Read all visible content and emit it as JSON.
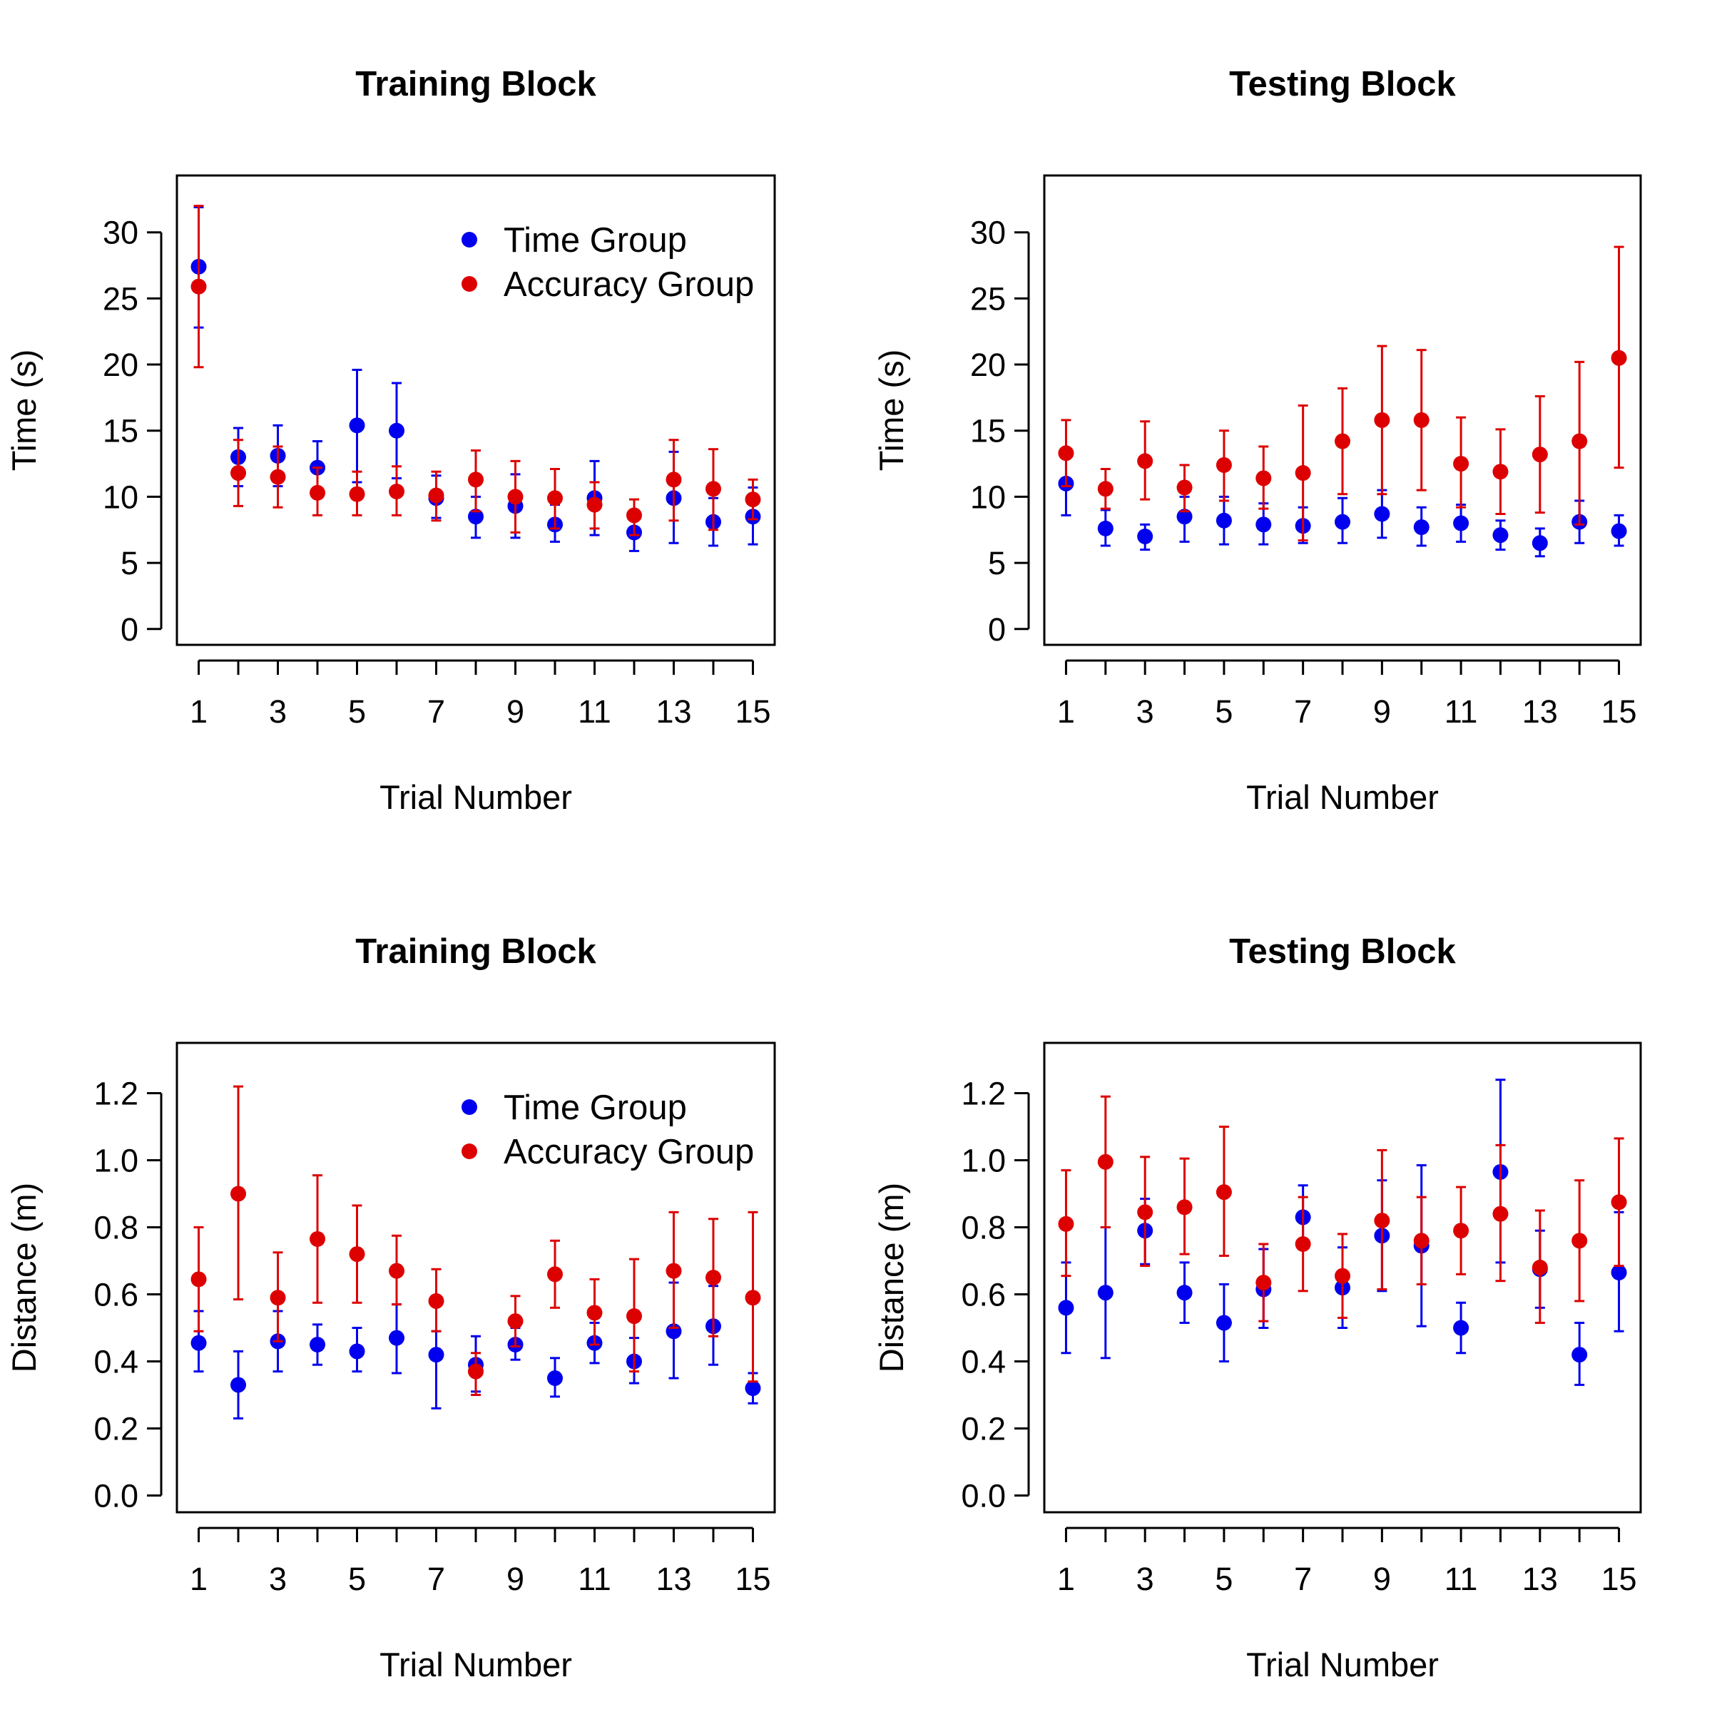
{
  "colors": {
    "time_group": "#0000ee",
    "accuracy_group": "#dd0000"
  },
  "chart_data": [
    {
      "type": "scatter",
      "title": "Training Block",
      "xlabel": "Trial Number",
      "ylabel": "Time (s)",
      "xlim": [
        0.45,
        15.55
      ],
      "ylim": [
        -1.2,
        34.3
      ],
      "xticks": [
        1,
        2,
        3,
        4,
        5,
        6,
        7,
        8,
        9,
        10,
        11,
        12,
        13,
        14,
        15
      ],
      "xtick_labels": [
        "1",
        "",
        "3",
        "",
        "5",
        "",
        "7",
        "",
        "9",
        "",
        "11",
        "",
        "13",
        "",
        "15"
      ],
      "yticks": [
        0,
        5,
        10,
        15,
        20,
        25,
        30
      ],
      "ytick_labels": [
        "0",
        "5",
        "10",
        "15",
        "20",
        "25",
        "30"
      ],
      "legend": "top-right",
      "x": [
        1,
        2,
        3,
        4,
        5,
        6,
        7,
        8,
        9,
        10,
        11,
        12,
        13,
        14,
        15
      ],
      "series": [
        {
          "name": "Time Group",
          "color": "#0000ee",
          "values": [
            27.4,
            13.0,
            13.1,
            12.2,
            15.4,
            15.0,
            9.9,
            8.5,
            9.3,
            7.9,
            9.9,
            7.3,
            9.9,
            8.1,
            8.5
          ],
          "err_low": [
            22.8,
            10.8,
            10.8,
            10.1,
            11.1,
            11.4,
            8.4,
            6.9,
            6.9,
            6.6,
            7.1,
            5.9,
            6.5,
            6.3,
            6.4
          ],
          "err_high": [
            31.9,
            15.2,
            15.4,
            14.2,
            19.6,
            18.6,
            11.6,
            10.0,
            11.7,
            9.4,
            12.7,
            8.7,
            13.4,
            9.9,
            10.7
          ]
        },
        {
          "name": "Accuracy Group",
          "color": "#dd0000",
          "values": [
            25.9,
            11.8,
            11.5,
            10.3,
            10.2,
            10.4,
            10.1,
            11.3,
            10.0,
            9.9,
            9.4,
            8.6,
            11.3,
            10.6,
            9.8
          ],
          "err_low": [
            19.8,
            9.3,
            9.2,
            8.6,
            8.6,
            8.6,
            8.2,
            8.9,
            7.3,
            7.6,
            7.6,
            7.1,
            8.2,
            7.5,
            8.3
          ],
          "err_high": [
            32.0,
            14.3,
            13.8,
            12.2,
            11.9,
            12.3,
            11.9,
            13.5,
            12.7,
            12.1,
            11.1,
            9.8,
            14.3,
            13.6,
            11.3
          ]
        }
      ]
    },
    {
      "type": "scatter",
      "title": "Testing Block",
      "xlabel": "Trial Number",
      "ylabel": "Time (s)",
      "xlim": [
        0.45,
        15.55
      ],
      "ylim": [
        -1.2,
        34.3
      ],
      "xticks": [
        1,
        2,
        3,
        4,
        5,
        6,
        7,
        8,
        9,
        10,
        11,
        12,
        13,
        14,
        15
      ],
      "xtick_labels": [
        "1",
        "",
        "3",
        "",
        "5",
        "",
        "7",
        "",
        "9",
        "",
        "11",
        "",
        "13",
        "",
        "15"
      ],
      "yticks": [
        0,
        5,
        10,
        15,
        20,
        25,
        30
      ],
      "ytick_labels": [
        "0",
        "5",
        "10",
        "15",
        "20",
        "25",
        "30"
      ],
      "legend": "none",
      "x": [
        1,
        2,
        3,
        4,
        5,
        6,
        7,
        8,
        9,
        10,
        11,
        12,
        13,
        14,
        15
      ],
      "series": [
        {
          "name": "Time Group",
          "color": "#0000ee",
          "values": [
            11.0,
            7.6,
            7.0,
            8.5,
            8.2,
            7.9,
            7.8,
            8.1,
            8.7,
            7.7,
            8.0,
            7.1,
            6.5,
            8.1,
            7.4
          ],
          "err_low": [
            8.6,
            6.3,
            6.0,
            6.6,
            6.4,
            6.4,
            6.5,
            6.5,
            6.9,
            6.3,
            6.6,
            6.0,
            5.5,
            6.5,
            6.3
          ],
          "err_high": [
            13.5,
            9.0,
            7.9,
            10.0,
            10.0,
            9.5,
            9.2,
            9.9,
            10.5,
            9.2,
            9.4,
            8.2,
            7.6,
            9.7,
            8.6
          ]
        },
        {
          "name": "Accuracy Group",
          "color": "#dd0000",
          "values": [
            13.3,
            10.6,
            12.7,
            10.7,
            12.4,
            11.4,
            11.8,
            14.2,
            15.8,
            15.8,
            12.5,
            11.9,
            13.2,
            14.2,
            20.5
          ],
          "err_low": [
            10.8,
            9.1,
            9.8,
            8.9,
            9.7,
            9.1,
            6.7,
            10.2,
            10.2,
            10.5,
            9.2,
            8.7,
            8.8,
            7.9,
            12.2
          ],
          "err_high": [
            15.8,
            12.1,
            15.7,
            12.4,
            15.0,
            13.8,
            16.9,
            18.2,
            21.4,
            21.1,
            16.0,
            15.1,
            17.6,
            20.2,
            28.9
          ]
        }
      ]
    },
    {
      "type": "scatter",
      "title": "Training Block",
      "xlabel": "Trial Number",
      "ylabel": "Distance (m)",
      "xlim": [
        0.45,
        15.55
      ],
      "ylim": [
        -0.05,
        1.35
      ],
      "xticks": [
        1,
        2,
        3,
        4,
        5,
        6,
        7,
        8,
        9,
        10,
        11,
        12,
        13,
        14,
        15
      ],
      "xtick_labels": [
        "1",
        "",
        "3",
        "",
        "5",
        "",
        "7",
        "",
        "9",
        "",
        "11",
        "",
        "13",
        "",
        "15"
      ],
      "yticks": [
        0.0,
        0.2,
        0.4,
        0.6,
        0.8,
        1.0,
        1.2
      ],
      "ytick_labels": [
        "0.0",
        "0.2",
        "0.4",
        "0.6",
        "0.8",
        "1.0",
        "1.2"
      ],
      "legend": "top-right",
      "x": [
        1,
        2,
        3,
        4,
        5,
        6,
        7,
        8,
        9,
        10,
        11,
        12,
        13,
        14,
        15
      ],
      "series": [
        {
          "name": "Time Group",
          "color": "#0000ee",
          "values": [
            0.455,
            0.33,
            0.46,
            0.45,
            0.43,
            0.47,
            0.42,
            0.39,
            0.45,
            0.35,
            0.455,
            0.4,
            0.49,
            0.505,
            0.32
          ],
          "err_low": [
            0.37,
            0.23,
            0.37,
            0.39,
            0.37,
            0.365,
            0.26,
            0.31,
            0.405,
            0.295,
            0.395,
            0.335,
            0.35,
            0.39,
            0.275
          ],
          "err_high": [
            0.55,
            0.43,
            0.55,
            0.51,
            0.5,
            0.57,
            0.49,
            0.475,
            0.5,
            0.41,
            0.515,
            0.47,
            0.635,
            0.625,
            0.365
          ]
        },
        {
          "name": "Accuracy Group",
          "color": "#dd0000",
          "values": [
            0.645,
            0.9,
            0.59,
            0.765,
            0.72,
            0.67,
            0.58,
            0.37,
            0.52,
            0.66,
            0.545,
            0.535,
            0.67,
            0.65,
            0.59
          ],
          "err_low": [
            0.49,
            0.585,
            0.46,
            0.575,
            0.575,
            0.57,
            0.49,
            0.3,
            0.445,
            0.56,
            0.45,
            0.37,
            0.5,
            0.475,
            0.34
          ],
          "err_high": [
            0.8,
            1.22,
            0.725,
            0.955,
            0.865,
            0.775,
            0.675,
            0.425,
            0.595,
            0.76,
            0.645,
            0.705,
            0.845,
            0.825,
            0.845
          ]
        }
      ]
    },
    {
      "type": "scatter",
      "title": "Testing Block",
      "xlabel": "Trial Number",
      "ylabel": "Distance (m)",
      "xlim": [
        0.45,
        15.55
      ],
      "ylim": [
        -0.05,
        1.35
      ],
      "xticks": [
        1,
        2,
        3,
        4,
        5,
        6,
        7,
        8,
        9,
        10,
        11,
        12,
        13,
        14,
        15
      ],
      "xtick_labels": [
        "1",
        "",
        "3",
        "",
        "5",
        "",
        "7",
        "",
        "9",
        "",
        "11",
        "",
        "13",
        "",
        "15"
      ],
      "yticks": [
        0.0,
        0.2,
        0.4,
        0.6,
        0.8,
        1.0,
        1.2
      ],
      "ytick_labels": [
        "0.0",
        "0.2",
        "0.4",
        "0.6",
        "0.8",
        "1.0",
        "1.2"
      ],
      "legend": "none",
      "x": [
        1,
        2,
        3,
        4,
        5,
        6,
        7,
        8,
        9,
        10,
        11,
        12,
        13,
        14,
        15
      ],
      "series": [
        {
          "name": "Time Group",
          "color": "#0000ee",
          "values": [
            0.56,
            0.605,
            0.79,
            0.605,
            0.515,
            0.615,
            0.83,
            0.62,
            0.775,
            0.745,
            0.5,
            0.965,
            0.675,
            0.42,
            0.665
          ],
          "err_low": [
            0.425,
            0.41,
            0.69,
            0.515,
            0.4,
            0.5,
            0.735,
            0.5,
            0.61,
            0.505,
            0.425,
            0.695,
            0.56,
            0.33,
            0.49
          ],
          "err_high": [
            0.695,
            0.8,
            0.885,
            0.695,
            0.63,
            0.735,
            0.925,
            0.74,
            0.94,
            0.985,
            0.575,
            1.24,
            0.79,
            0.515,
            0.845
          ]
        },
        {
          "name": "Accuracy Group",
          "color": "#dd0000",
          "values": [
            0.81,
            0.995,
            0.845,
            0.86,
            0.905,
            0.635,
            0.75,
            0.655,
            0.82,
            0.76,
            0.79,
            0.84,
            0.68,
            0.76,
            0.875
          ],
          "err_low": [
            0.655,
            0.8,
            0.685,
            0.72,
            0.715,
            0.52,
            0.61,
            0.53,
            0.615,
            0.63,
            0.66,
            0.64,
            0.515,
            0.58,
            0.685
          ],
          "err_high": [
            0.97,
            1.19,
            1.01,
            1.005,
            1.1,
            0.75,
            0.89,
            0.78,
            1.03,
            0.89,
            0.92,
            1.045,
            0.85,
            0.94,
            1.065
          ]
        }
      ]
    }
  ]
}
